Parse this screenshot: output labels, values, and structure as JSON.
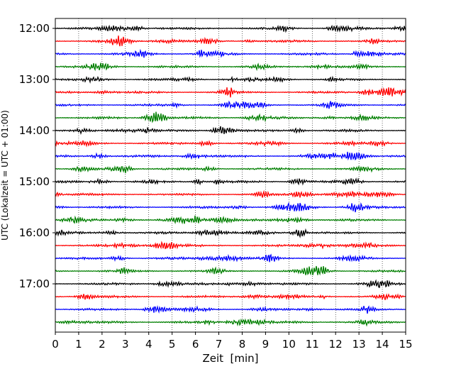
{
  "chart_data": {
    "type": "line",
    "title": "",
    "xlabel": "Zeit  [min]",
    "ylabel": "UTC (Lokalzeit = UTC + 01:00)",
    "xlim": [
      0,
      15
    ],
    "x_ticks": [
      0,
      1,
      2,
      3,
      4,
      5,
      6,
      7,
      8,
      9,
      10,
      11,
      12,
      13,
      14,
      15
    ],
    "x_tick_labels": [
      "0",
      "1",
      "2",
      "3",
      "4",
      "5",
      "6",
      "7",
      "8",
      "9",
      "10",
      "11",
      "12",
      "13",
      "14",
      "15"
    ],
    "y_tick_labels": [
      "12:00",
      "13:00",
      "14:00",
      "15:00",
      "16:00",
      "17:00"
    ],
    "start_hour": 12,
    "trace_minutes": 15,
    "trace_count": 24,
    "trace_colors": [
      "#000000",
      "#ff0000",
      "#0000ff",
      "#007f00"
    ],
    "grid": "vertical dotted at each minute"
  }
}
